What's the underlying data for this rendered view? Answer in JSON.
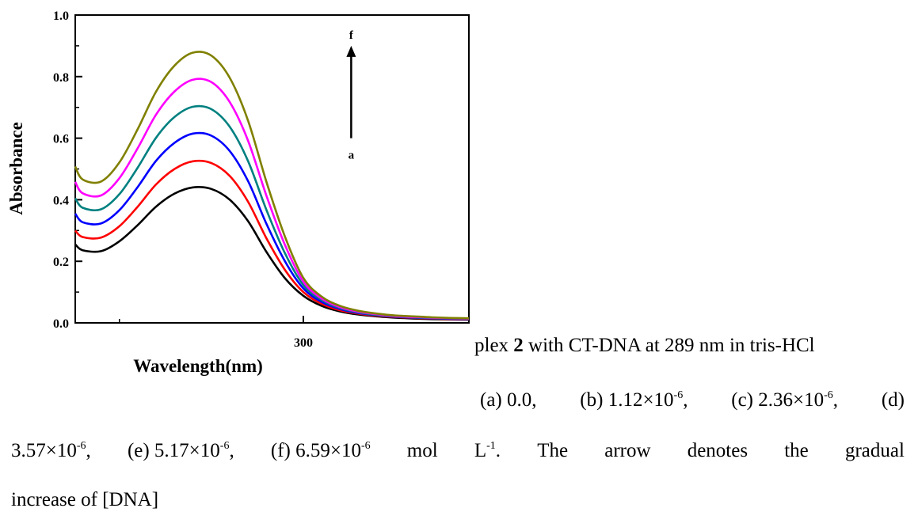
{
  "chart_data": {
    "type": "line",
    "xlabel": "Wavelength(nm)",
    "ylabel": "Absorbance",
    "xlim": [
      238,
      345
    ],
    "ylim": [
      0,
      1.0
    ],
    "x_ticks_major": [
      300
    ],
    "x_tick_labels": [
      "300"
    ],
    "x_ticks_minor": [
      250
    ],
    "y_ticks": [
      0.0,
      0.2,
      0.4,
      0.6,
      0.8,
      1.0
    ],
    "y_tick_labels": [
      "0.0",
      "0.2",
      "0.4",
      "0.6",
      "0.8",
      "1.0"
    ],
    "grid": false,
    "annotation": {
      "arrow_x": 313,
      "arrow_from": 0.6,
      "arrow_to": 0.9,
      "top_label": "f",
      "bottom_label": "a"
    },
    "x": [
      238,
      240,
      245,
      250,
      255,
      260,
      265,
      270,
      275,
      280,
      285,
      290,
      295,
      300,
      305,
      310,
      315,
      320,
      325,
      330,
      335,
      340,
      345
    ],
    "series": [
      {
        "color": "#000000",
        "values": [
          0.255,
          0.236,
          0.233,
          0.265,
          0.318,
          0.378,
          0.42,
          0.44,
          0.435,
          0.4,
          0.33,
          0.23,
          0.145,
          0.088,
          0.055,
          0.037,
          0.027,
          0.021,
          0.017,
          0.014,
          0.012,
          0.011,
          0.01
        ]
      },
      {
        "color": "#ff0000",
        "values": [
          0.3,
          0.279,
          0.277,
          0.314,
          0.378,
          0.45,
          0.5,
          0.525,
          0.519,
          0.477,
          0.393,
          0.274,
          0.172,
          0.1,
          0.062,
          0.041,
          0.03,
          0.023,
          0.019,
          0.016,
          0.014,
          0.012,
          0.011
        ]
      },
      {
        "color": "#0000ff",
        "values": [
          0.355,
          0.327,
          0.323,
          0.366,
          0.442,
          0.527,
          0.585,
          0.615,
          0.608,
          0.558,
          0.46,
          0.321,
          0.2,
          0.112,
          0.068,
          0.045,
          0.032,
          0.025,
          0.02,
          0.017,
          0.015,
          0.013,
          0.012
        ]
      },
      {
        "color": "#008080",
        "values": [
          0.405,
          0.374,
          0.369,
          0.418,
          0.505,
          0.602,
          0.669,
          0.702,
          0.694,
          0.637,
          0.525,
          0.366,
          0.226,
          0.123,
          0.074,
          0.048,
          0.034,
          0.026,
          0.021,
          0.018,
          0.016,
          0.014,
          0.013
        ]
      },
      {
        "color": "#ff00ff",
        "values": [
          0.458,
          0.421,
          0.414,
          0.47,
          0.568,
          0.677,
          0.752,
          0.79,
          0.782,
          0.717,
          0.591,
          0.412,
          0.253,
          0.134,
          0.079,
          0.051,
          0.036,
          0.028,
          0.022,
          0.019,
          0.017,
          0.015,
          0.014
        ]
      },
      {
        "color": "#808000",
        "values": [
          0.508,
          0.466,
          0.459,
          0.521,
          0.63,
          0.752,
          0.836,
          0.878,
          0.868,
          0.796,
          0.656,
          0.457,
          0.28,
          0.146,
          0.085,
          0.055,
          0.039,
          0.03,
          0.024,
          0.021,
          0.018,
          0.016,
          0.015
        ]
      }
    ]
  },
  "caption": {
    "line1_pre": "plex ",
    "line1_bold": "2",
    "line1_post": " with CT-DNA at 289 nm in tris-HCl",
    "a": "(a) 0.0,",
    "b_pre": "(b) 1.12×10",
    "b_exp": "-6",
    "b_post": ",",
    "c_pre": "(c) 2.36×10",
    "c_exp": "-6",
    "c_post": ",",
    "d": "(d)",
    "d_val_pre": "3.57×10",
    "d_val_exp": "-6",
    "d_val_post": ",",
    "e_pre": "(e) 5.17×10",
    "e_exp": "-6",
    "e_post": ",",
    "f_pre": "(f) 6.59×10",
    "f_exp": "-6",
    "mol": "mol",
    "L": "L",
    "L_exp": "-1",
    "L_post": ".",
    "w_the": "The",
    "w_arrow": "arrow",
    "w_denotes": "denotes",
    "w_the2": "the",
    "w_gradual": "gradual",
    "line4": "increase of [DNA]"
  }
}
